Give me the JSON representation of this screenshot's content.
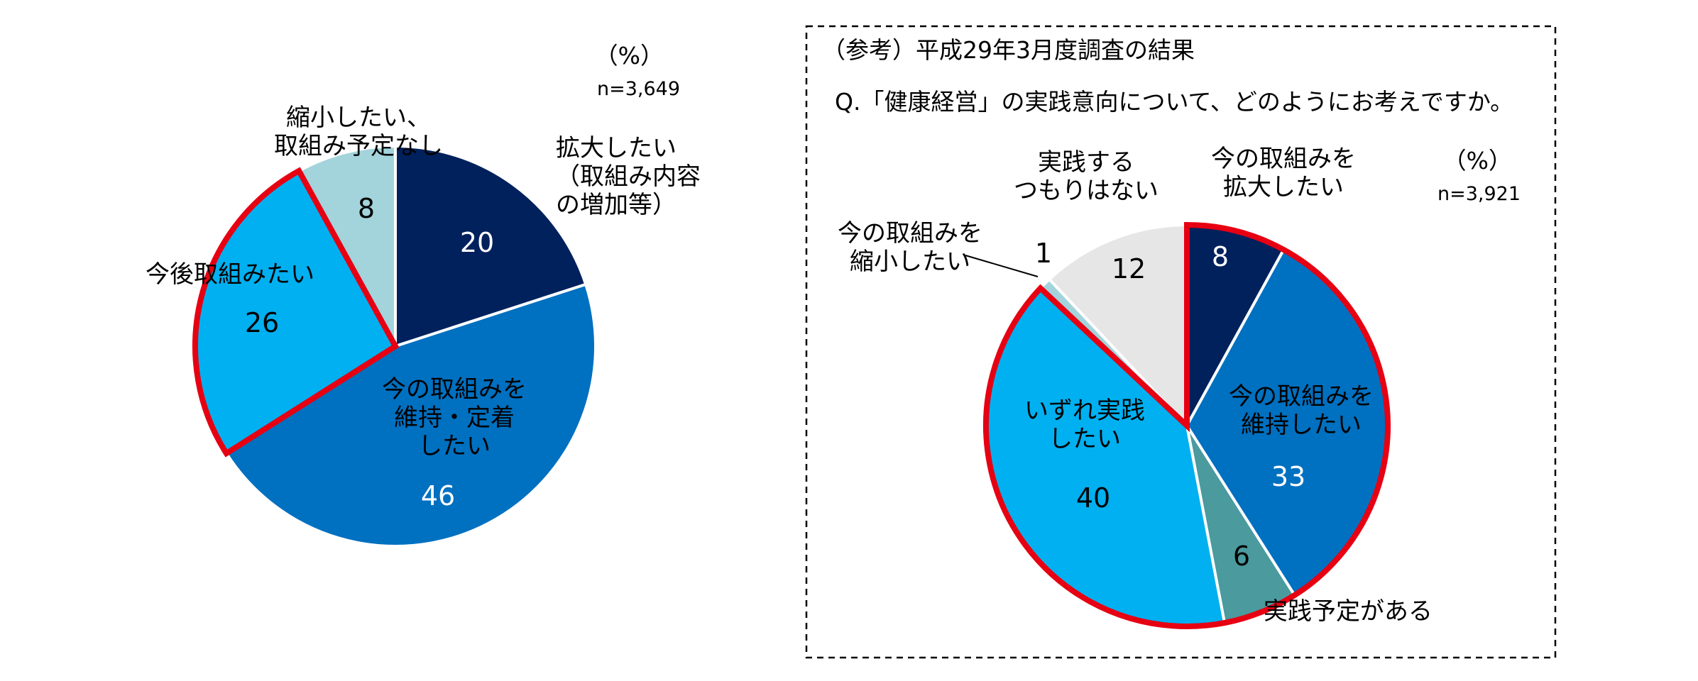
{
  "chart_data": [
    {
      "type": "pie",
      "unit_label": "（%）",
      "n_label": "n=3,649",
      "slices": [
        {
          "label_lines": [
            "拡大したい",
            "（取組み内容",
            "の増加等）"
          ],
          "value": 20,
          "color": "#00215C",
          "value_color": "#ffffff"
        },
        {
          "label_lines": [
            "今の取組みを",
            "維持・定着",
            "したい"
          ],
          "value": 46,
          "color": "#0070C0",
          "value_color": "#ffffff"
        },
        {
          "label_lines": [
            "今後取組みたい"
          ],
          "value": 26,
          "color": "#00B0F0",
          "value_color": "#000000"
        },
        {
          "label_lines": [
            "縮小したい、",
            "取組み予定なし"
          ],
          "value": 8,
          "color": "#A3D4DC",
          "value_color": "#000000"
        }
      ]
    },
    {
      "type": "pie",
      "caption": "（参考）平成29年3月度調査の結果",
      "question": "Q.「健康経営」の実践意向について、どのようにお考えですか。",
      "unit_label": "（%）",
      "n_label": "n=3,921",
      "slices": [
        {
          "label_lines": [
            "今の取組みを",
            "拡大したい"
          ],
          "value": 8,
          "color": "#00215C",
          "value_color": "#ffffff"
        },
        {
          "label_lines": [
            "今の取組みを",
            "維持したい"
          ],
          "value": 33,
          "color": "#0070C0",
          "value_color": "#ffffff"
        },
        {
          "label_lines": [
            "実践予定がある"
          ],
          "value": 6,
          "color": "#4A9A9E",
          "value_color": "#000000"
        },
        {
          "label_lines": [
            "いずれ実践",
            "したい"
          ],
          "value": 40,
          "color": "#00B0F0",
          "value_color": "#000000"
        },
        {
          "label_lines": [
            "今の取組みを",
            "縮小したい"
          ],
          "value": 1,
          "color": "#A3D4DC",
          "value_color": "#000000"
        },
        {
          "label_lines": [
            "実践する",
            "つもりはない"
          ],
          "value": 12,
          "color": "#E6E6E6",
          "value_color": "#000000"
        }
      ]
    }
  ]
}
